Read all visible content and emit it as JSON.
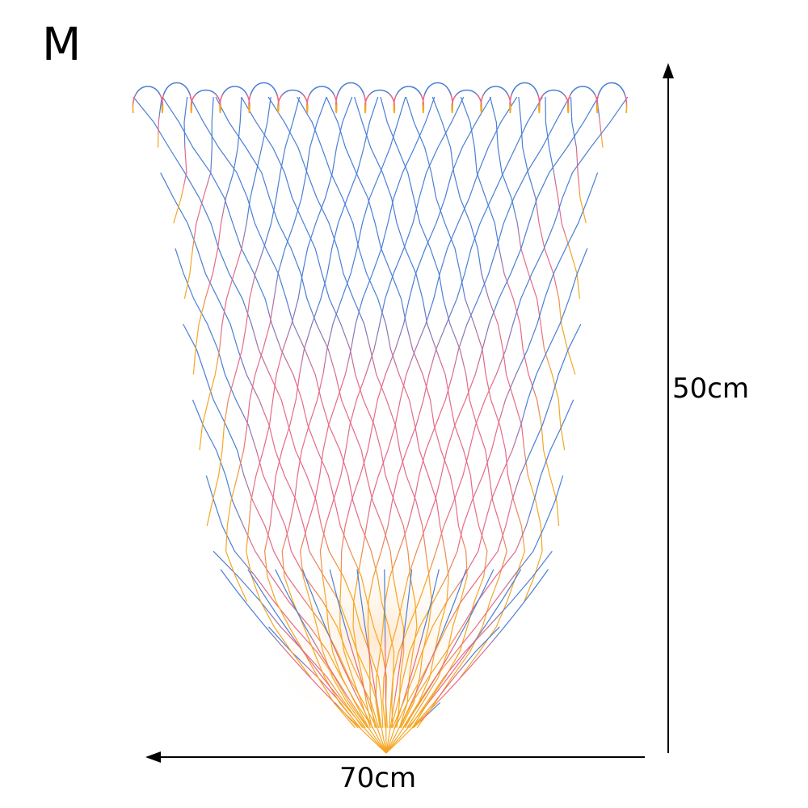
{
  "product": {
    "size_label": "M",
    "height_label": "50cm",
    "width_label": "70cm"
  },
  "colors": {
    "net_top": "#4a7fd6",
    "net_middle": "#e56a88",
    "net_bottom": "#f5a623",
    "arrows": "#000000"
  },
  "icons": {
    "net": "fishing-landing-net",
    "height_arrow": "arrow-up",
    "width_arrow": "arrow-left"
  }
}
